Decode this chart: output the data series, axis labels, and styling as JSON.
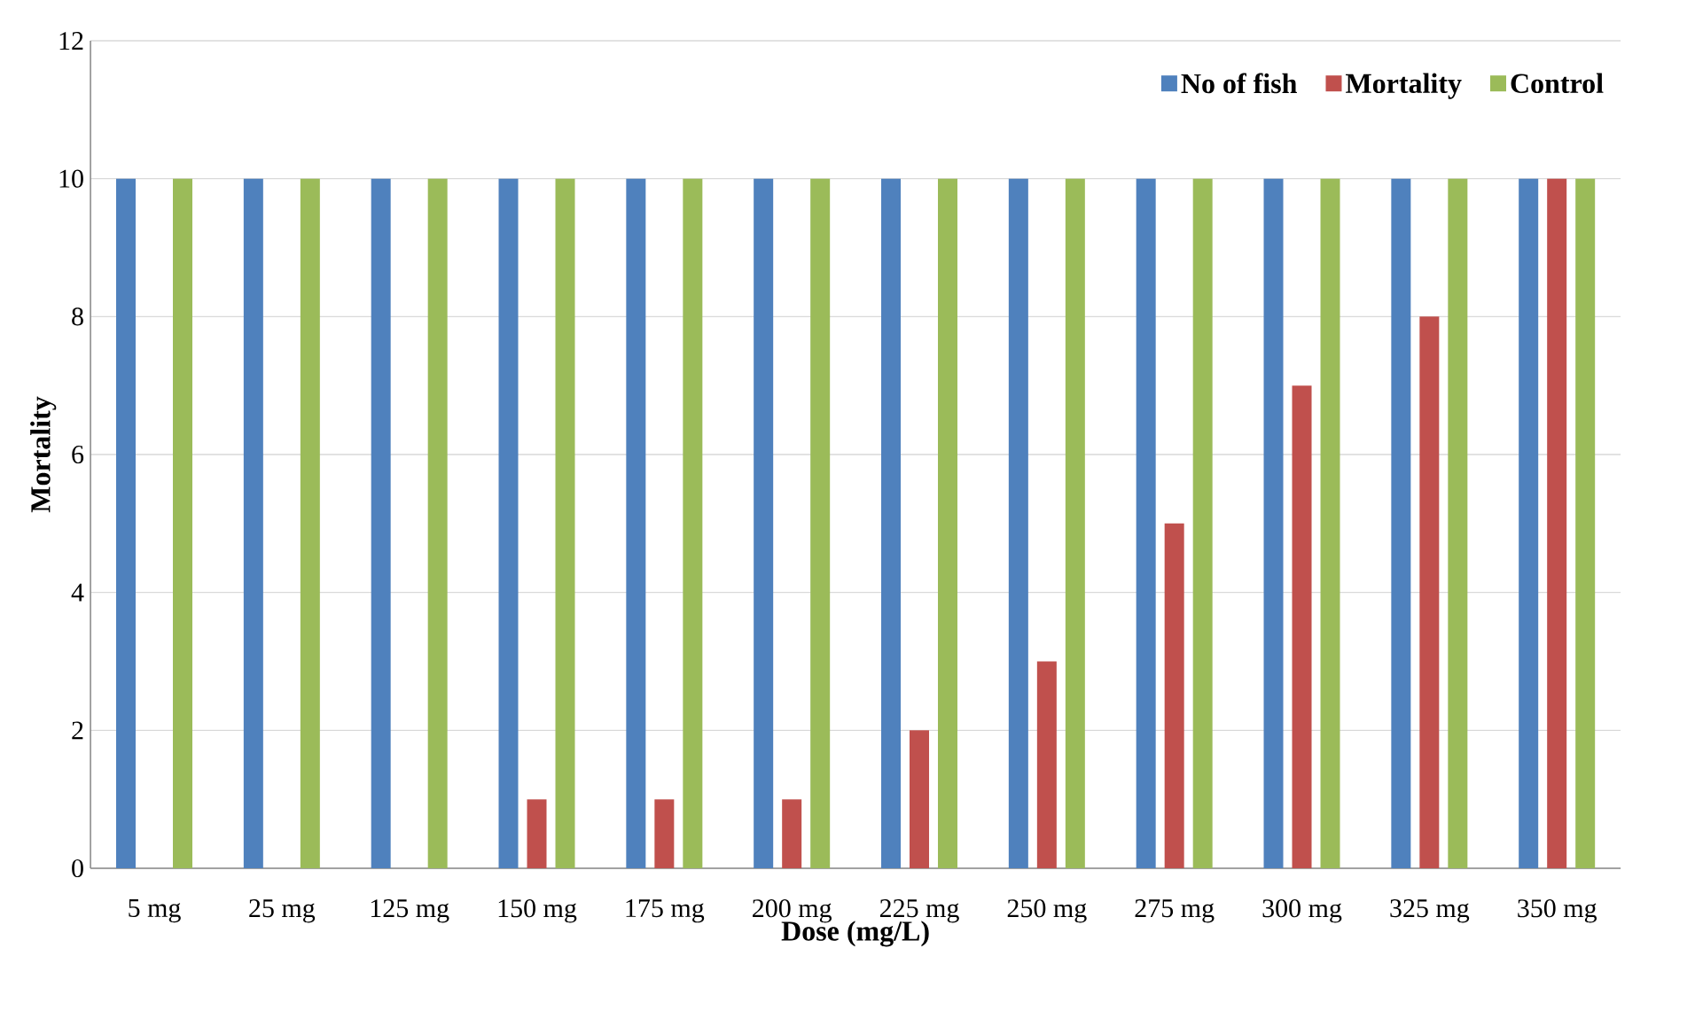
{
  "chart_data": {
    "type": "bar",
    "xlabel": "Dose (mg/L)",
    "ylabel": "Mortality",
    "categories": [
      "5 mg",
      "25 mg",
      "125 mg",
      "150 mg",
      "175 mg",
      "200 mg",
      "225 mg",
      "250 mg",
      "275 mg",
      "300 mg",
      "325 mg",
      "350 mg"
    ],
    "series": [
      {
        "name": "No of fish",
        "color": "#4f81bd",
        "values": [
          10,
          10,
          10,
          10,
          10,
          10,
          10,
          10,
          10,
          10,
          10,
          10
        ]
      },
      {
        "name": "Mortality",
        "color": "#c0504d",
        "values": [
          0,
          0,
          0,
          1,
          1,
          1,
          2,
          3,
          5,
          7,
          8,
          10
        ]
      },
      {
        "name": "Control",
        "color": "#9bbb59",
        "values": [
          10,
          10,
          10,
          10,
          10,
          10,
          10,
          10,
          10,
          10,
          10,
          10
        ]
      }
    ],
    "ylim": [
      0,
      12
    ],
    "yticks": [
      0,
      2,
      4,
      6,
      8,
      10,
      12
    ],
    "grid": "y",
    "legend": "top right"
  }
}
